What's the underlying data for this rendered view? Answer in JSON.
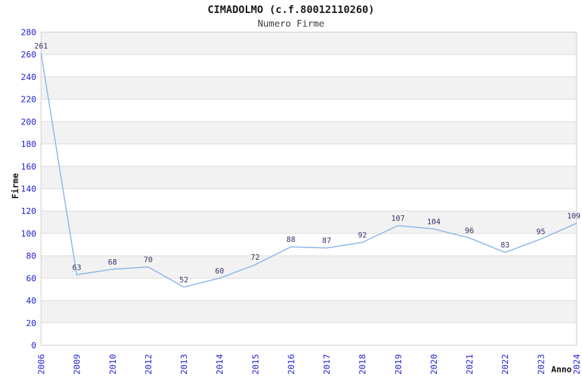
{
  "chart_data": {
    "type": "line",
    "title": "CIMADOLMO (c.f.80012110260)",
    "subtitle": "Numero Firme",
    "xlabel": "Anno",
    "ylabel": "Firme",
    "categories": [
      "2006",
      "2009",
      "2010",
      "2012",
      "2013",
      "2014",
      "2015",
      "2016",
      "2017",
      "2018",
      "2019",
      "2020",
      "2021",
      "2022",
      "2023",
      "2024"
    ],
    "values": [
      261,
      63,
      68,
      70,
      52,
      60,
      72,
      88,
      87,
      92,
      107,
      104,
      96,
      83,
      95,
      109
    ],
    "ylim": [
      0,
      280
    ],
    "ytick_step": 20,
    "yticks": [
      0,
      20,
      40,
      60,
      80,
      100,
      120,
      140,
      160,
      180,
      200,
      220,
      240,
      260,
      280
    ],
    "grid": "horizontal",
    "legend_position": "none",
    "point_labels_visible": true,
    "colors": {
      "line": "#8ab3e8",
      "axis_tick_label": "#2626d2",
      "point_label": "#333366",
      "band": "#f2f2f2",
      "band_alt": "#ffffff",
      "grid_line": "#dcdcdc",
      "plot_border": "#c9c9c9",
      "title_text": "#1a1a1a",
      "subtitle_text": "#3c3c3c",
      "axis_title_text": "#111111",
      "background": "#ffffff"
    }
  }
}
